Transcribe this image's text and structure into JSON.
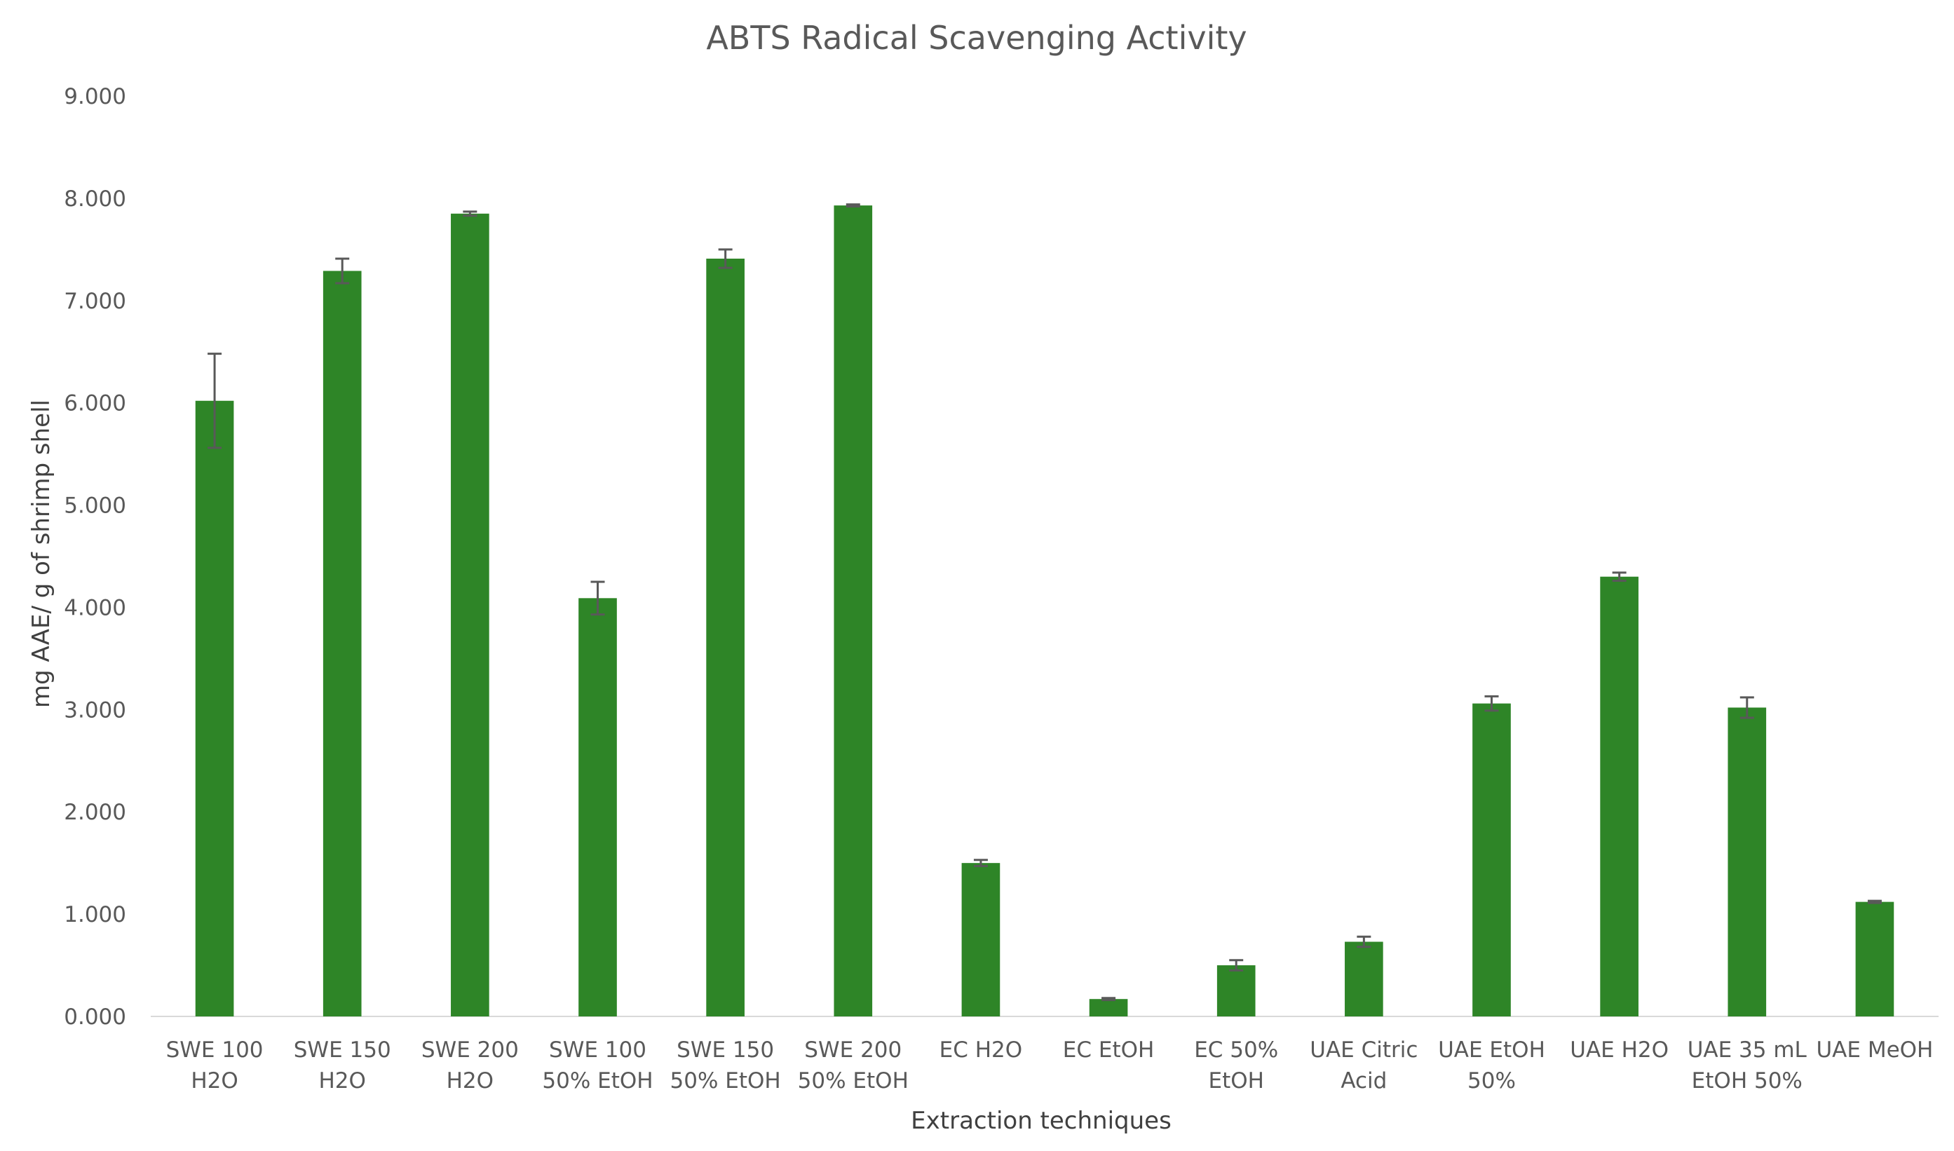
{
  "chart_data": {
    "type": "bar",
    "title": "ABTS Radical Scavenging Activity",
    "xlabel": "Extraction techniques",
    "ylabel": "mg AAE/ g of shrimp shell",
    "ylim": [
      0,
      9
    ],
    "yticks": [
      "0.000",
      "1.000",
      "2.000",
      "3.000",
      "4.000",
      "5.000",
      "6.000",
      "7.000",
      "8.000",
      "9.000"
    ],
    "grid": false,
    "legend": "none",
    "bar_color": "#2e8527",
    "error_color": "#595959",
    "categories": [
      [
        "SWE 100",
        "H2O"
      ],
      [
        "SWE 150",
        "H2O"
      ],
      [
        "SWE 200",
        "H2O"
      ],
      [
        "SWE 100",
        "50% EtOH"
      ],
      [
        "SWE 150",
        "50% EtOH"
      ],
      [
        "SWE 200",
        "50% EtOH"
      ],
      [
        "EC H2O"
      ],
      [
        "EC EtOH"
      ],
      [
        "EC 50%",
        "EtOH"
      ],
      [
        "UAE Citric",
        "Acid"
      ],
      [
        "UAE EtOH",
        "50%"
      ],
      [
        "UAE H2O"
      ],
      [
        "UAE 35 mL",
        "EtOH 50%"
      ],
      [
        "UAE MeOH"
      ]
    ],
    "values": [
      6.02,
      7.29,
      7.85,
      4.09,
      7.41,
      7.93,
      1.5,
      0.17,
      0.5,
      0.73,
      3.06,
      4.3,
      3.02,
      1.12
    ],
    "errors": [
      0.46,
      0.12,
      0.02,
      0.16,
      0.09,
      0.01,
      0.03,
      0.01,
      0.05,
      0.05,
      0.07,
      0.04,
      0.1,
      0.01
    ]
  }
}
